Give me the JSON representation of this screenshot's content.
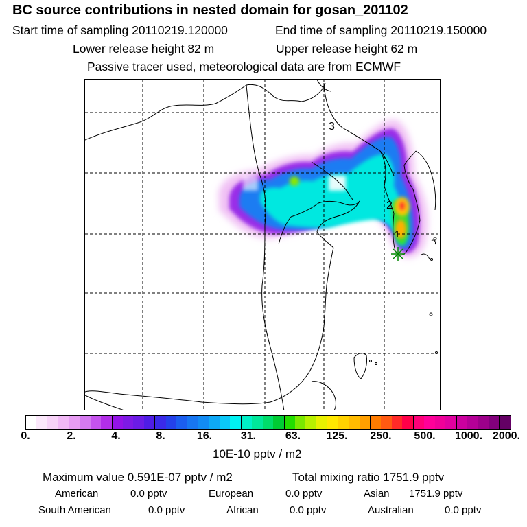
{
  "header": {
    "title": "BC  source contributions in nested domain for gosan_201102",
    "start_time": "Start time of sampling 20110219.120000",
    "end_time": "End time of sampling 20110219.150000",
    "lower_release": "Lower release height   82 m",
    "upper_release": "Upper release height   62 m",
    "tracer_note": "Passive tracer used, meteorological data are from ECMWF"
  },
  "map": {
    "labels": [
      "3",
      "2",
      "1"
    ]
  },
  "colorbar": {
    "ticks": [
      "0.",
      "2.",
      "4.",
      "8.",
      "16.",
      "31.",
      "63.",
      "125.",
      "250.",
      "500.",
      "1000.",
      "2000."
    ],
    "unit_label": "10E-10 pptv / m2",
    "colors": [
      "#ffffff",
      "#fbe8fb",
      "#f7d3f8",
      "#f1b9f6",
      "#e79cf3",
      "#d57af0",
      "#c553ed",
      "#b22ee8",
      "#9413e8",
      "#7e1ae6",
      "#6b1ce6",
      "#4f1de6",
      "#3a2ae8",
      "#2441ea",
      "#1b5eef",
      "#1776f2",
      "#128bf4",
      "#0ea8f6",
      "#0bc8f8",
      "#00f2f2",
      "#00f0c8",
      "#00e89a",
      "#00dd6a",
      "#00cc33",
      "#22dd00",
      "#7ae800",
      "#b8f000",
      "#e8f000",
      "#ffe800",
      "#ffd200",
      "#ffbb00",
      "#ff9f00",
      "#ff7c00",
      "#ff5a12",
      "#ff2a28",
      "#ff0048",
      "#ff0078",
      "#ff0099",
      "#f00099",
      "#e000a0",
      "#cc009f",
      "#b50097",
      "#9d008a",
      "#82007c",
      "#640065"
    ]
  },
  "footer": {
    "max_value": "Maximum value  0.591E-07 pptv / m2",
    "total_mixing": "Total mixing ratio     1751.9 pptv",
    "american": "American",
    "american_val": "0.0 pptv",
    "european": "European",
    "european_val": "0.0 pptv",
    "asian": "Asian",
    "asian_val": "1751.9 pptv",
    "south_american": "South American",
    "south_american_val": "0.0 pptv",
    "african": "African",
    "african_val": "0.0 pptv",
    "australian": "Australian",
    "australian_val": "0.0 pptv"
  }
}
